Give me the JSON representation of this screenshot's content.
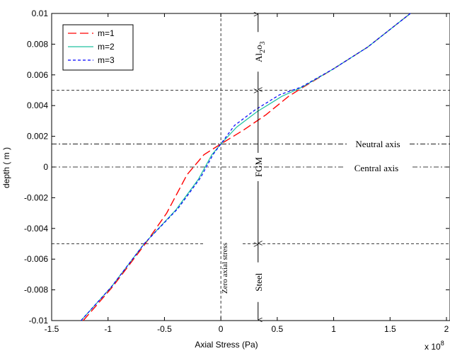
{
  "chart_data": {
    "type": "line",
    "xlabel": "Axial Stress (Pa)",
    "ylabel": "depth ( m )",
    "x_exponent": "x 10",
    "x_exponent_power": "8",
    "xlim": [
      -1.5,
      2
    ],
    "ylim": [
      -0.01,
      0.01
    ],
    "x_ticks": [
      "-1.5",
      "-1",
      "-0.5",
      "0",
      "0.5",
      "1",
      "1.5",
      "2"
    ],
    "y_ticks": [
      "-0.01",
      "-0.008",
      "-0.006",
      "-0.004",
      "-0.002",
      "0",
      "0.002",
      "0.004",
      "0.006",
      "0.008",
      "0.01"
    ],
    "x_tick_values": [
      -1.5,
      -1,
      -0.5,
      0,
      0.5,
      1,
      1.5,
      2
    ],
    "y_tick_values": [
      -0.01,
      -0.008,
      -0.006,
      -0.004,
      -0.002,
      0,
      0.002,
      0.004,
      0.006,
      0.008,
      0.01
    ],
    "legend_position": "top-left",
    "series": [
      {
        "name": "m=1",
        "color": "#ff0000",
        "dash": "long-dash",
        "points": [
          [
            -1.22,
            -0.01
          ],
          [
            -0.96,
            -0.0078
          ],
          [
            -0.67,
            -0.005
          ],
          [
            -0.48,
            -0.003
          ],
          [
            -0.3,
            -0.0005
          ],
          [
            -0.15,
            0.0008
          ],
          [
            0,
            0.0015
          ],
          [
            0.2,
            0.0024
          ],
          [
            0.4,
            0.0034
          ],
          [
            0.6,
            0.0046
          ],
          [
            0.73,
            0.0052
          ],
          [
            1.0,
            0.0064
          ],
          [
            1.3,
            0.0078
          ],
          [
            1.68,
            0.01
          ]
        ]
      },
      {
        "name": "m=2",
        "color": "#20c0a0",
        "dash": "solid",
        "points": [
          [
            -1.24,
            -0.01
          ],
          [
            -0.97,
            -0.0078
          ],
          [
            -0.68,
            -0.005
          ],
          [
            -0.4,
            -0.0028
          ],
          [
            -0.2,
            -0.0008
          ],
          [
            -0.08,
            0.0008
          ],
          [
            0,
            0.0015
          ],
          [
            0.14,
            0.0026
          ],
          [
            0.32,
            0.0036
          ],
          [
            0.54,
            0.0046
          ],
          [
            0.72,
            0.0052
          ],
          [
            1.0,
            0.0064
          ],
          [
            1.3,
            0.0078
          ],
          [
            1.68,
            0.01
          ]
        ]
      },
      {
        "name": "m=3",
        "color": "#0000ff",
        "dash": "short-dash",
        "points": [
          [
            -1.24,
            -0.01
          ],
          [
            -0.97,
            -0.0078
          ],
          [
            -0.68,
            -0.005
          ],
          [
            -0.38,
            -0.0027
          ],
          [
            -0.18,
            -0.0007
          ],
          [
            -0.07,
            0.0008
          ],
          [
            0,
            0.0015
          ],
          [
            0.12,
            0.0027
          ],
          [
            0.3,
            0.0037
          ],
          [
            0.52,
            0.0047
          ],
          [
            0.71,
            0.0052
          ],
          [
            1.0,
            0.0064
          ],
          [
            1.3,
            0.0078
          ],
          [
            1.68,
            0.01
          ]
        ]
      }
    ],
    "reference_lines": [
      {
        "orientation": "horizontal",
        "value": 0.005,
        "style": "dashed"
      },
      {
        "orientation": "horizontal",
        "value": -0.005,
        "style": "dashed"
      },
      {
        "orientation": "horizontal",
        "value": 0.0015,
        "style": "dash-dot",
        "label": "Neutral axis"
      },
      {
        "orientation": "horizontal",
        "value": 0,
        "style": "dash-dot",
        "label": "Central axis"
      },
      {
        "orientation": "vertical",
        "value": 0,
        "style": "dashed",
        "label": "Zero axial stress"
      }
    ],
    "regions": [
      {
        "label_base": "Al",
        "label_sub1": "2",
        "label_mid": "o",
        "label_sub2": "3",
        "y_from": 0.005,
        "y_to": 0.01
      },
      {
        "label": "FGM",
        "y_from": -0.005,
        "y_to": 0.005
      },
      {
        "label": "Steel",
        "y_from": -0.01,
        "y_to": -0.005
      }
    ],
    "region_marker_x": 0.33,
    "annotations": {
      "neutral_axis": "Neutral axis",
      "central_axis": "Central axis",
      "zero_stress": "Zero axial stress"
    }
  }
}
